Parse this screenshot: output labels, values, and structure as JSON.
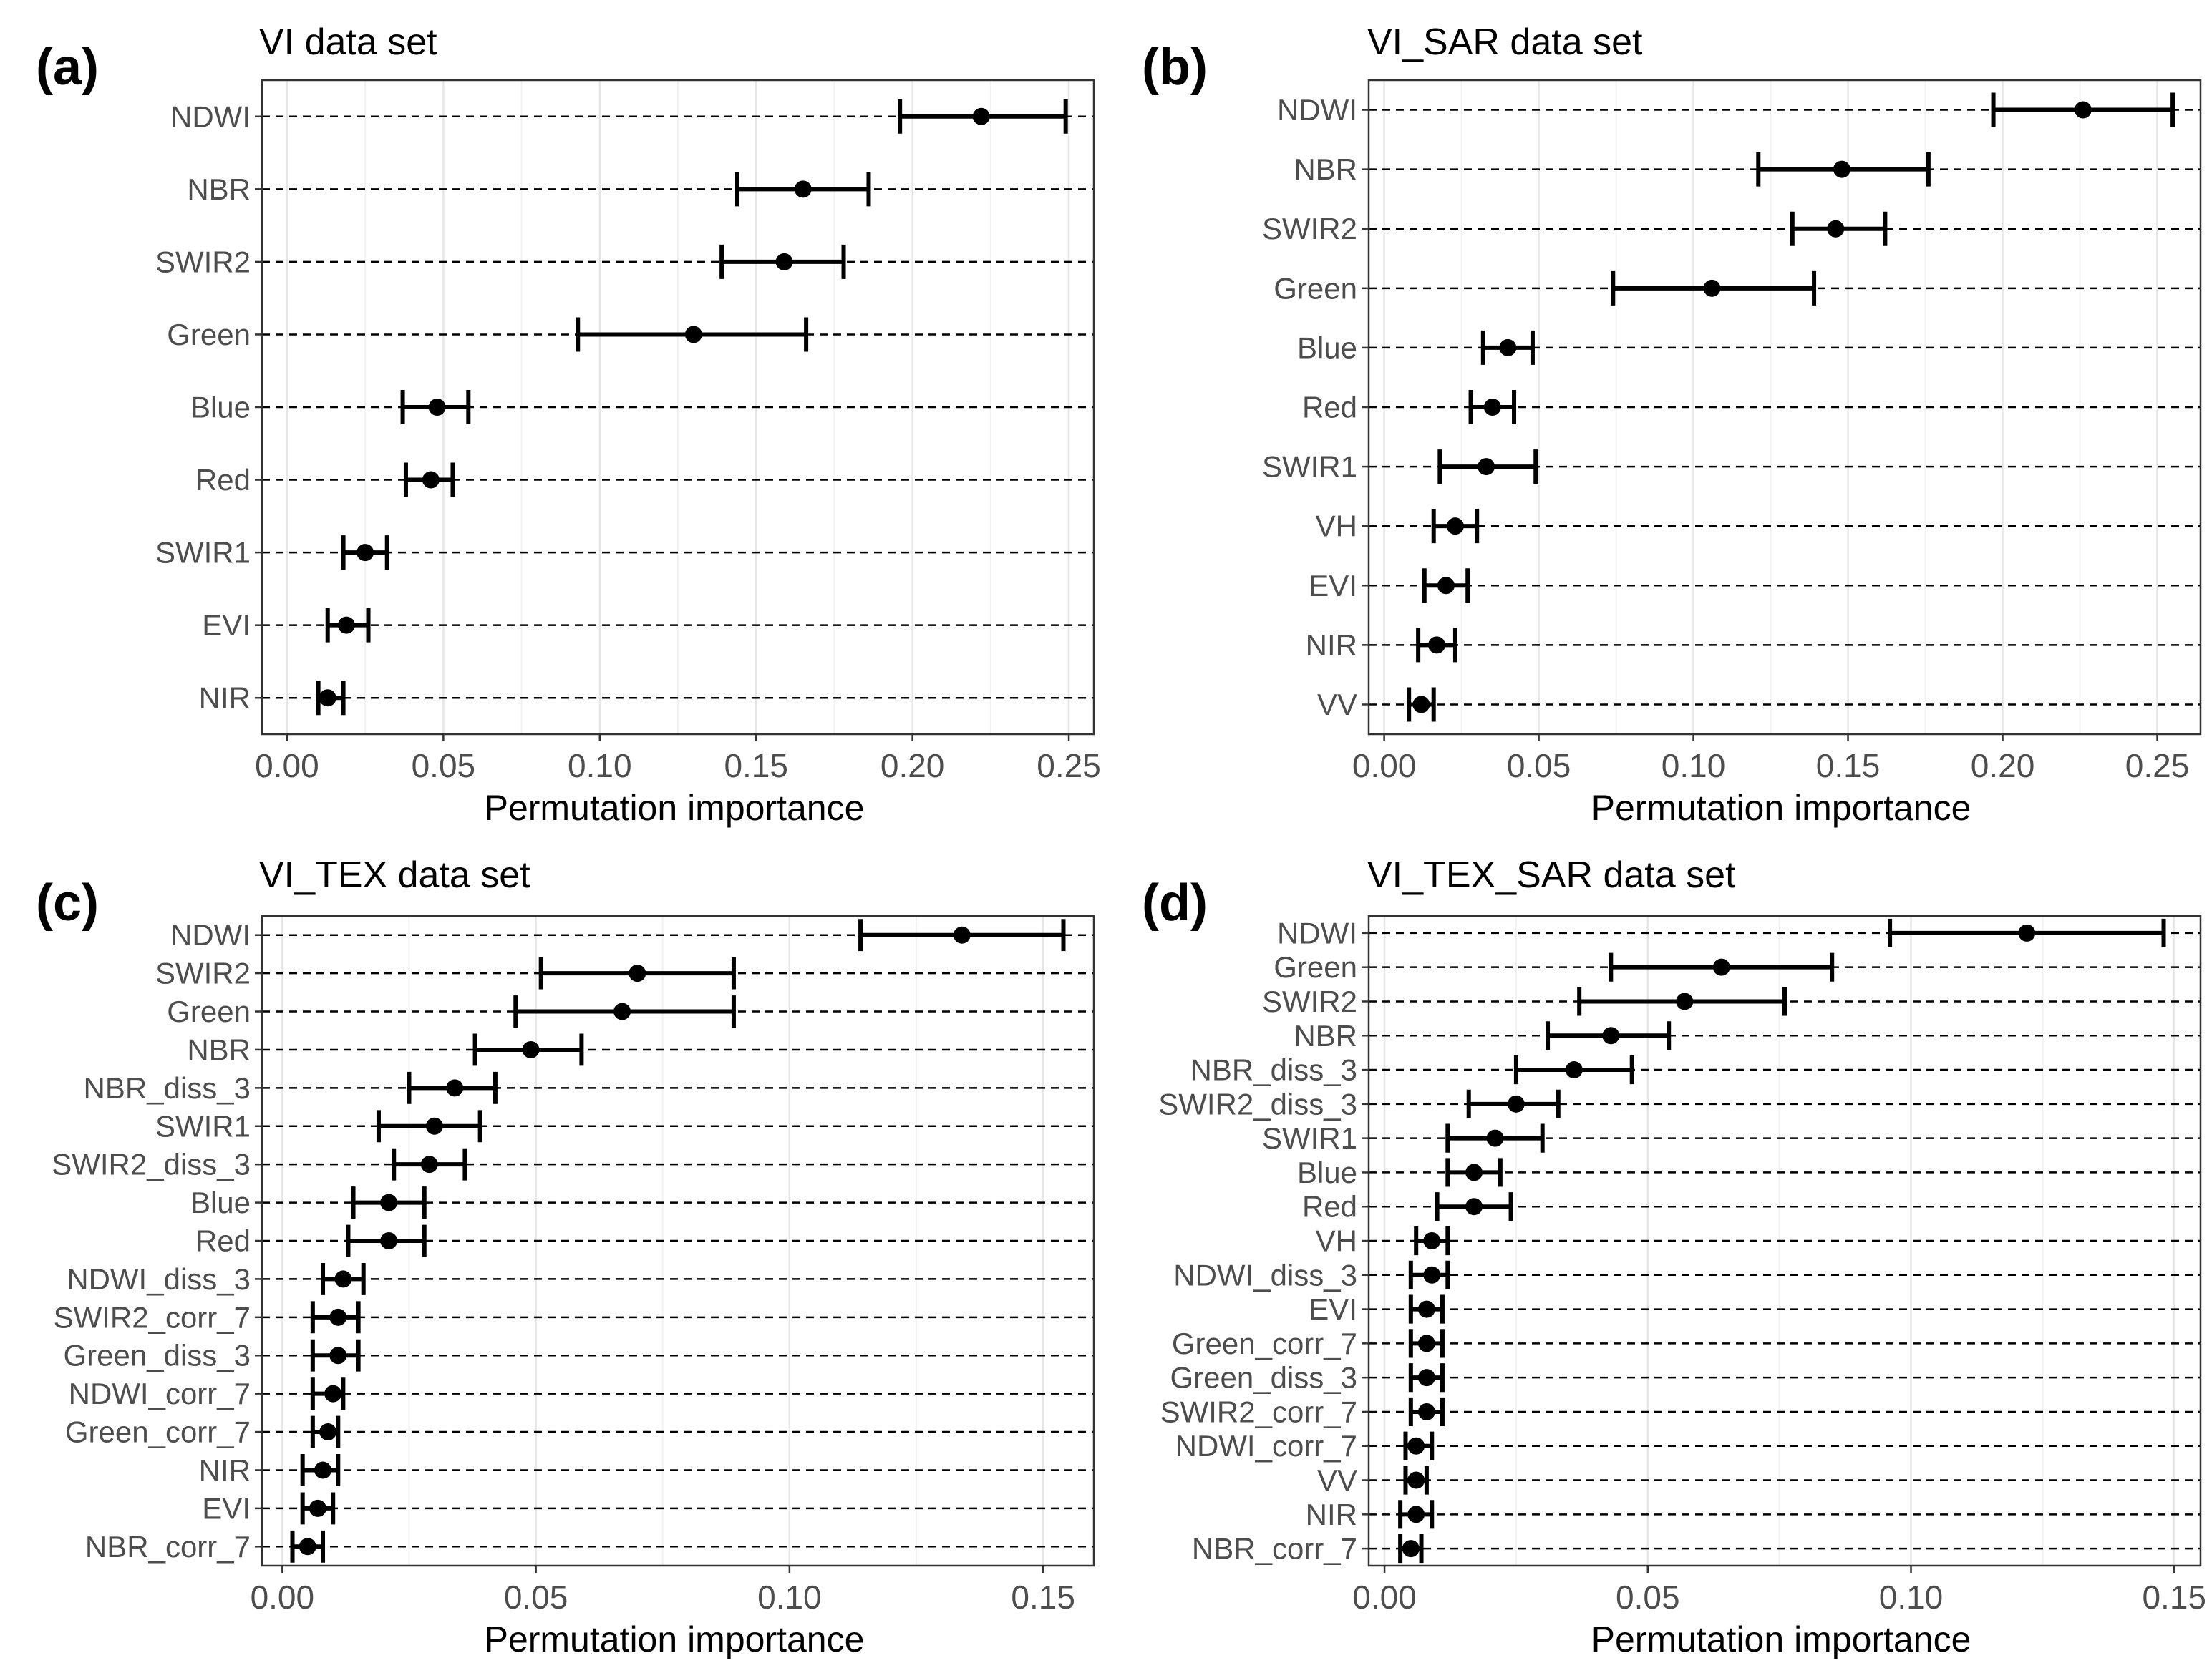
{
  "chart_data": [
    {
      "type": "scatter",
      "subtype": "dot-with-errorbars",
      "panel": "(a)",
      "title": "VI data set",
      "xlabel": "Permutation importance",
      "xlim": [
        -0.008,
        0.258
      ],
      "xticks": [
        0.0,
        0.05,
        0.1,
        0.15,
        0.2,
        0.25
      ],
      "xtick_labels": [
        "0.00",
        "0.05",
        "0.10",
        "0.15",
        "0.20",
        "0.25"
      ],
      "grid": true,
      "features": [
        "NDWI",
        "NBR",
        "SWIR2",
        "Green",
        "Blue",
        "Red",
        "SWIR1",
        "EVI",
        "NIR"
      ],
      "importance": [
        0.222,
        0.165,
        0.159,
        0.13,
        0.048,
        0.046,
        0.025,
        0.019,
        0.013
      ],
      "lower": [
        0.196,
        0.144,
        0.139,
        0.093,
        0.037,
        0.038,
        0.018,
        0.013,
        0.01
      ],
      "upper": [
        0.249,
        0.186,
        0.178,
        0.166,
        0.058,
        0.053,
        0.032,
        0.026,
        0.018
      ]
    },
    {
      "type": "scatter",
      "subtype": "dot-with-errorbars",
      "panel": "(b)",
      "title": "VI_SAR data set",
      "xlabel": "Permutation importance",
      "xlim": [
        -0.005,
        0.264
      ],
      "xticks": [
        0.0,
        0.05,
        0.1,
        0.15,
        0.2,
        0.25
      ],
      "xtick_labels": [
        "0.00",
        "0.05",
        "0.10",
        "0.15",
        "0.20",
        "0.25"
      ],
      "grid": true,
      "features": [
        "NDWI",
        "NBR",
        "SWIR2",
        "Green",
        "Blue",
        "Red",
        "SWIR1",
        "VH",
        "EVI",
        "NIR",
        "VV"
      ],
      "importance": [
        0.226,
        0.148,
        0.146,
        0.106,
        0.04,
        0.035,
        0.033,
        0.023,
        0.02,
        0.017,
        0.012
      ],
      "lower": [
        0.197,
        0.121,
        0.132,
        0.074,
        0.032,
        0.028,
        0.018,
        0.016,
        0.013,
        0.011,
        0.008
      ],
      "upper": [
        0.255,
        0.176,
        0.162,
        0.139,
        0.048,
        0.042,
        0.049,
        0.03,
        0.027,
        0.023,
        0.016
      ]
    },
    {
      "type": "scatter",
      "subtype": "dot-with-errorbars",
      "panel": "(c)",
      "title": "VI_TEX data set",
      "xlabel": "Permutation importance",
      "xlim": [
        -0.004,
        0.16
      ],
      "xticks": [
        0.0,
        0.05,
        0.1,
        0.15
      ],
      "xtick_labels": [
        "0.00",
        "0.05",
        "0.10",
        "0.15"
      ],
      "grid": true,
      "features": [
        "NDWI",
        "SWIR2",
        "Green",
        "NBR",
        "NBR_diss_3",
        "SWIR1",
        "SWIR2_diss_3",
        "Blue",
        "Red",
        "NDWI_diss_3",
        "SWIR2_corr_7",
        "Green_diss_3",
        "NDWI_corr_7",
        "Green_corr_7",
        "NIR",
        "EVI",
        "NBR_corr_7"
      ],
      "importance": [
        0.134,
        0.07,
        0.067,
        0.049,
        0.034,
        0.03,
        0.029,
        0.021,
        0.021,
        0.012,
        0.011,
        0.011,
        0.01,
        0.009,
        0.008,
        0.007,
        0.005
      ],
      "lower": [
        0.114,
        0.051,
        0.046,
        0.038,
        0.025,
        0.019,
        0.022,
        0.014,
        0.013,
        0.008,
        0.006,
        0.006,
        0.006,
        0.006,
        0.004,
        0.004,
        0.002
      ],
      "upper": [
        0.154,
        0.089,
        0.089,
        0.059,
        0.042,
        0.039,
        0.036,
        0.028,
        0.028,
        0.016,
        0.015,
        0.015,
        0.012,
        0.011,
        0.011,
        0.01,
        0.008
      ]
    },
    {
      "type": "scatter",
      "subtype": "dot-with-errorbars",
      "panel": "(d)",
      "title": "VI_TEX_SAR data set",
      "xlabel": "Permutation importance",
      "xlim": [
        -0.003,
        0.155
      ],
      "xticks": [
        0.0,
        0.05,
        0.1,
        0.15
      ],
      "xtick_labels": [
        "0.00",
        "0.05",
        "0.10",
        "0.15"
      ],
      "grid": true,
      "features": [
        "NDWI",
        "Green",
        "SWIR2",
        "NBR",
        "NBR_diss_3",
        "SWIR2_diss_3",
        "SWIR1",
        "Blue",
        "Red",
        "VH",
        "NDWI_diss_3",
        "EVI",
        "Green_corr_7",
        "Green_diss_3",
        "SWIR2_corr_7",
        "NDWI_corr_7",
        "VV",
        "NIR",
        "NBR_corr_7"
      ],
      "importance": [
        0.122,
        0.064,
        0.057,
        0.043,
        0.036,
        0.025,
        0.021,
        0.017,
        0.017,
        0.009,
        0.009,
        0.008,
        0.008,
        0.008,
        0.008,
        0.006,
        0.006,
        0.006,
        0.005
      ],
      "lower": [
        0.096,
        0.043,
        0.037,
        0.031,
        0.025,
        0.016,
        0.012,
        0.012,
        0.01,
        0.006,
        0.005,
        0.005,
        0.005,
        0.005,
        0.005,
        0.004,
        0.004,
        0.003,
        0.003
      ],
      "upper": [
        0.148,
        0.085,
        0.076,
        0.054,
        0.047,
        0.033,
        0.03,
        0.022,
        0.024,
        0.012,
        0.012,
        0.011,
        0.011,
        0.011,
        0.011,
        0.009,
        0.008,
        0.009,
        0.007
      ]
    }
  ]
}
